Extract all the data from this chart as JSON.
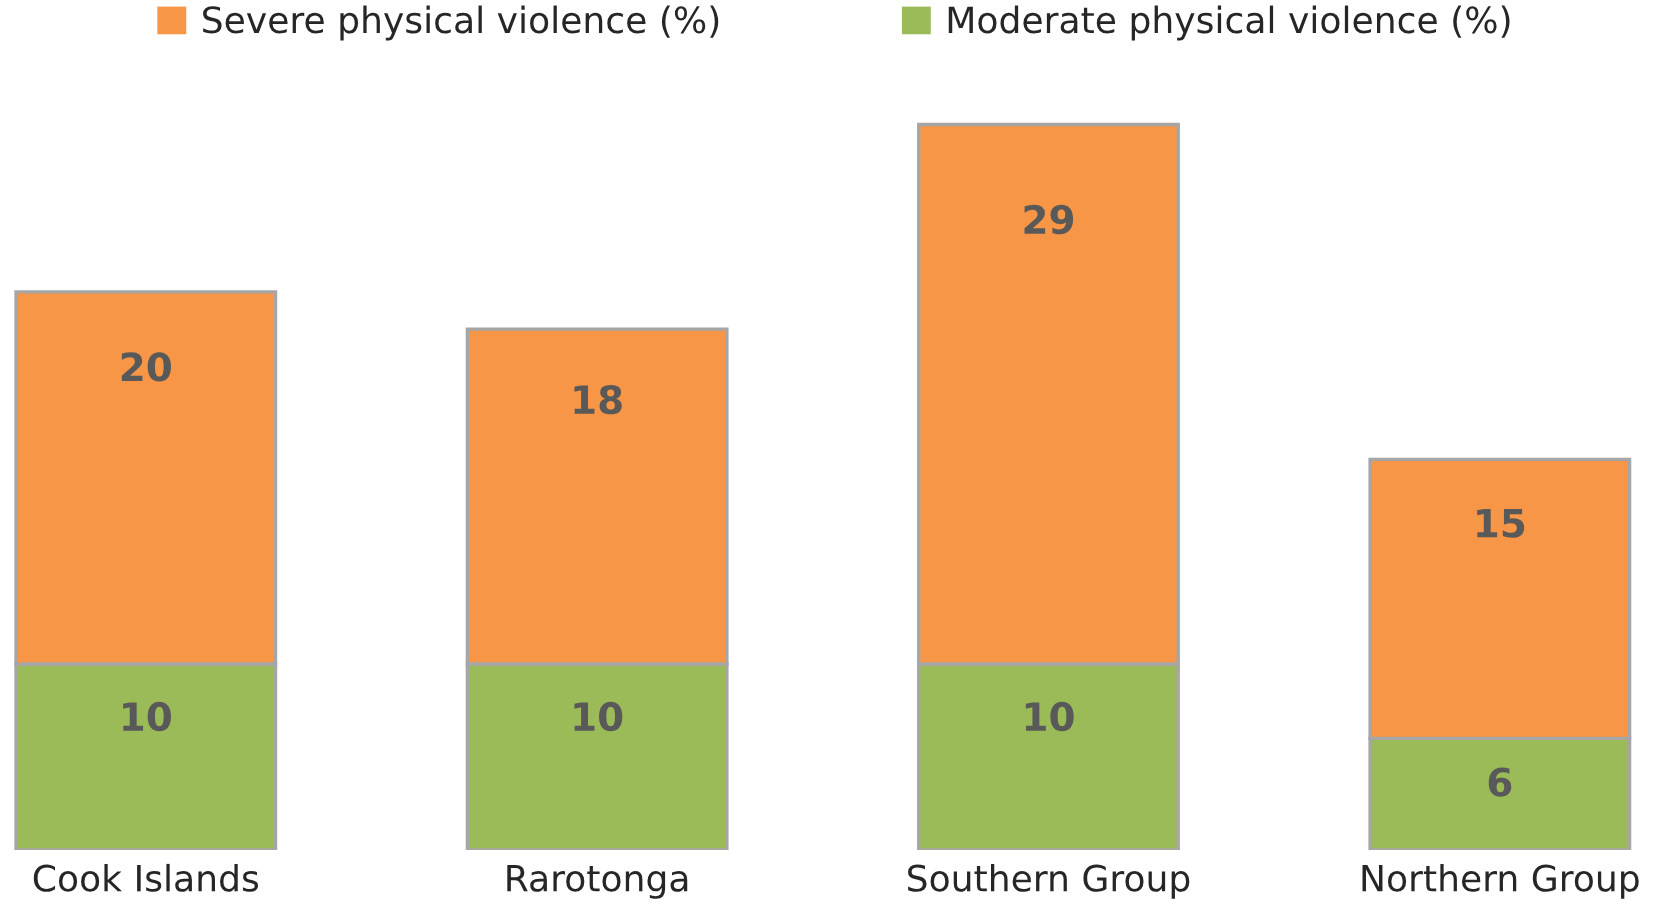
{
  "chart_data": {
    "type": "bar",
    "stacked": true,
    "categories": [
      "Cook Islands",
      "Rarotonga",
      "Southern Group",
      "Northern Group"
    ],
    "series": [
      {
        "name": "Moderate physical violence (%)",
        "color": "#9bbb59",
        "values": [
          10,
          10,
          10,
          6
        ]
      },
      {
        "name": "Severe physical violence (%)",
        "color": "#f79646",
        "values": [
          20,
          18,
          29,
          15
        ]
      }
    ],
    "data_labels": true,
    "legend": "top",
    "tick_labels": "x",
    "grid": false
  }
}
